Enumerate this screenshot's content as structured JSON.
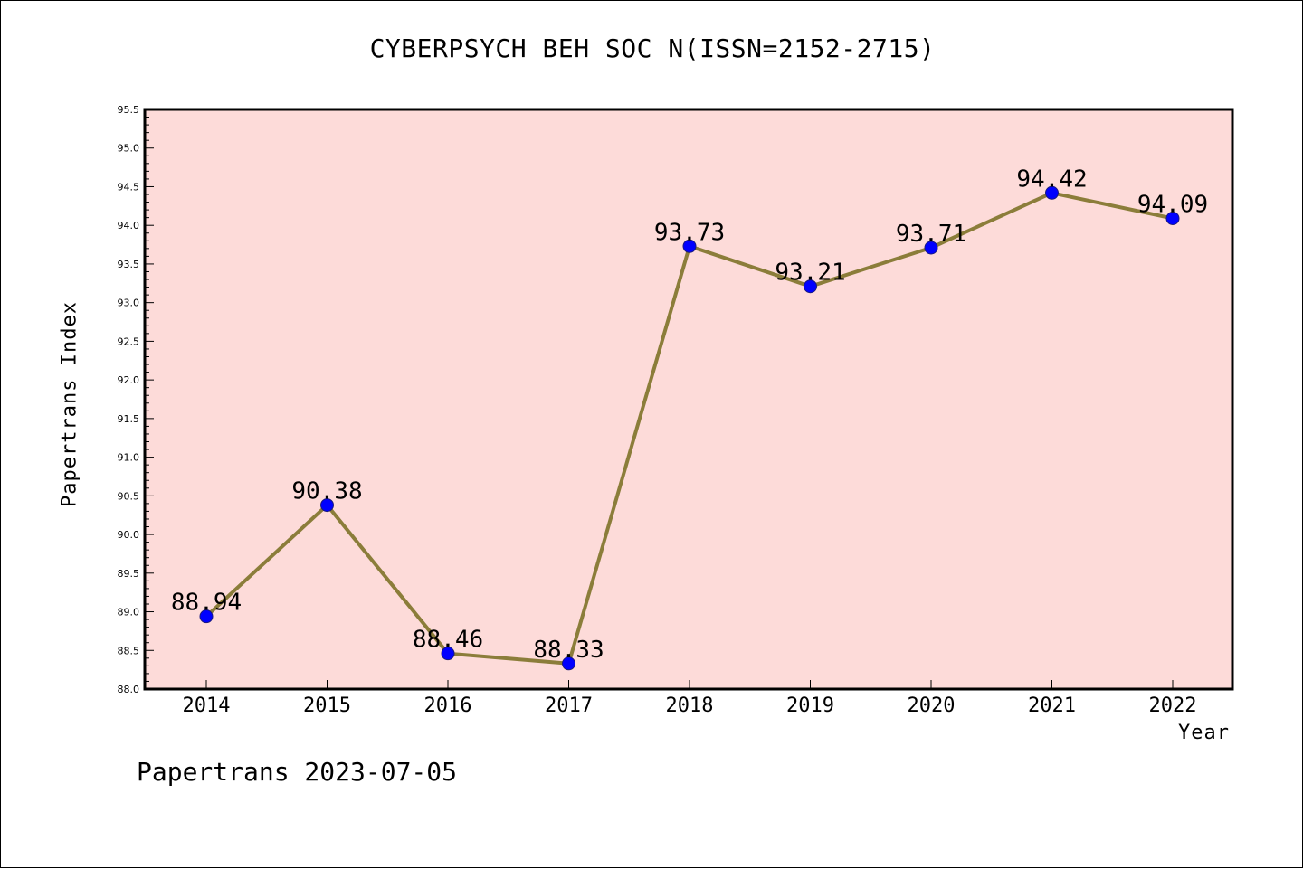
{
  "chart_data": {
    "type": "line",
    "title": "CYBERPSYCH BEH SOC N(ISSN=2152-2715)",
    "xlabel": "Year",
    "ylabel": "Papertrans Index",
    "categories": [
      "2014",
      "2015",
      "2016",
      "2017",
      "2018",
      "2019",
      "2020",
      "2021",
      "2022"
    ],
    "series": [
      {
        "values": [
          88.94,
          90.38,
          88.46,
          88.33,
          93.73,
          93.21,
          93.71,
          94.42,
          94.09
        ],
        "labels": [
          "88.94",
          "90.38",
          "88.46",
          "88.33",
          "93.73",
          "93.21",
          "93.71",
          "94.42",
          "94.09"
        ],
        "line_color": "#8b7d3a",
        "marker_color": "#0000ff"
      }
    ],
    "ylim": [
      88.0,
      95.5
    ],
    "yticks": [
      "88.0",
      "88.5",
      "89.0",
      "89.5",
      "90.0",
      "90.5",
      "91.0",
      "91.5",
      "92.0",
      "92.5",
      "93.0",
      "93.5",
      "94.0",
      "94.5",
      "95.0",
      "95.5"
    ],
    "grid": false,
    "plot_background": "#fddbd9"
  },
  "footer": "Papertrans 2023-07-05"
}
